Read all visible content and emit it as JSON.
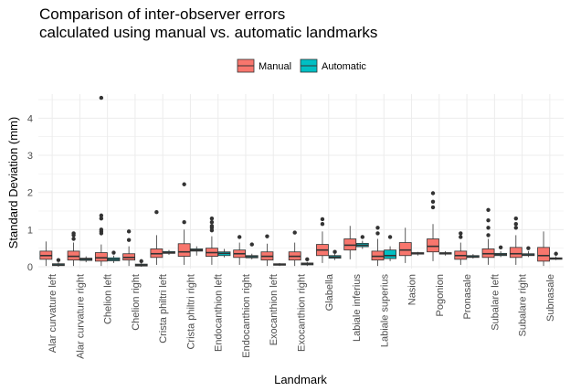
{
  "chart_data": {
    "type": "boxplot",
    "title_lines": [
      "Comparison of inter-observer errors",
      "calculated using manual vs. automatic landmarks"
    ],
    "xlabel": "Landmark",
    "ylabel": "Standard Deviation (mm)",
    "ylim": [
      -0.05,
      4.65
    ],
    "yticks": [
      0,
      1,
      2,
      3,
      4
    ],
    "ytick_labels": [
      "0",
      "1",
      "2",
      "3",
      "4"
    ],
    "grid": true,
    "legend_position": "top",
    "legend": [
      {
        "name": "Manual",
        "color": "#F8766D"
      },
      {
        "name": "Automatic",
        "color": "#00BFC4"
      }
    ],
    "categories": [
      "Alar curvature left",
      "Alar curvature right",
      "Chelion left",
      "Chelion right",
      "Crista philtri left",
      "Crista philtri right",
      "Endocanthion left",
      "Endocanthion right",
      "Exocanthion left",
      "Exocanthion right",
      "Glabella",
      "Labiale inferius",
      "Labiale superius",
      "Nasion",
      "Pogonion",
      "Pronasale",
      "Subalare left",
      "Subalare right",
      "Subnasale"
    ],
    "series": [
      {
        "name": "Manual",
        "boxes": [
          {
            "whislo": 0.02,
            "q1": 0.2,
            "med": 0.3,
            "q3": 0.42,
            "whishi": 0.68,
            "outliers": []
          },
          {
            "whislo": 0.02,
            "q1": 0.18,
            "med": 0.28,
            "q3": 0.42,
            "whishi": 0.65,
            "outliers": [
              0.75,
              0.85,
              0.9
            ]
          },
          {
            "whislo": 0.02,
            "q1": 0.15,
            "med": 0.24,
            "q3": 0.38,
            "whishi": 0.6,
            "outliers": [
              0.9,
              0.95,
              1.0,
              1.3,
              1.38,
              4.55
            ]
          },
          {
            "whislo": 0.02,
            "q1": 0.18,
            "med": 0.25,
            "q3": 0.35,
            "whishi": 0.55,
            "outliers": [
              0.72,
              0.95
            ]
          },
          {
            "whislo": 0.05,
            "q1": 0.25,
            "med": 0.35,
            "q3": 0.48,
            "whishi": 0.85,
            "outliers": [
              1.47
            ]
          },
          {
            "whislo": 0.05,
            "q1": 0.28,
            "med": 0.4,
            "q3": 0.62,
            "whishi": 1.0,
            "outliers": [
              1.2,
              2.22
            ]
          },
          {
            "whislo": 0.05,
            "q1": 0.28,
            "med": 0.38,
            "q3": 0.5,
            "whishi": 0.82,
            "outliers": [
              0.98,
              1.05,
              1.1,
              1.2,
              1.3
            ]
          },
          {
            "whislo": 0.05,
            "q1": 0.25,
            "med": 0.35,
            "q3": 0.45,
            "whishi": 0.65,
            "outliers": [
              0.8
            ]
          },
          {
            "whislo": 0.02,
            "q1": 0.18,
            "med": 0.28,
            "q3": 0.4,
            "whishi": 0.62,
            "outliers": [
              0.82
            ]
          },
          {
            "whislo": 0.02,
            "q1": 0.18,
            "med": 0.28,
            "q3": 0.4,
            "whishi": 0.65,
            "outliers": [
              0.92
            ]
          },
          {
            "whislo": 0.1,
            "q1": 0.3,
            "med": 0.45,
            "q3": 0.6,
            "whishi": 0.95,
            "outliers": [
              1.15,
              1.28
            ]
          },
          {
            "whislo": 0.2,
            "q1": 0.45,
            "med": 0.58,
            "q3": 0.75,
            "whishi": 1.1,
            "outliers": []
          },
          {
            "whislo": 0.02,
            "q1": 0.18,
            "med": 0.28,
            "q3": 0.42,
            "whishi": 0.75,
            "outliers": [
              0.9,
              1.05
            ]
          },
          {
            "whislo": 0.1,
            "q1": 0.3,
            "med": 0.45,
            "q3": 0.65,
            "whishi": 1.05,
            "outliers": []
          },
          {
            "whislo": 0.15,
            "q1": 0.4,
            "med": 0.55,
            "q3": 0.75,
            "whishi": 1.15,
            "outliers": [
              1.6,
              1.75,
              1.98
            ]
          },
          {
            "whislo": 0.05,
            "q1": 0.2,
            "med": 0.3,
            "q3": 0.42,
            "whishi": 0.65,
            "outliers": [
              0.8,
              0.9
            ]
          },
          {
            "whislo": 0.05,
            "q1": 0.25,
            "med": 0.35,
            "q3": 0.48,
            "whishi": 0.75,
            "outliers": [
              0.85,
              1.05,
              1.25,
              1.53
            ]
          },
          {
            "whislo": 0.05,
            "q1": 0.25,
            "med": 0.35,
            "q3": 0.52,
            "whishi": 0.85,
            "outliers": [
              1.05,
              1.15,
              1.3
            ]
          },
          {
            "whislo": 0.02,
            "q1": 0.15,
            "med": 0.3,
            "q3": 0.52,
            "whishi": 0.95,
            "outliers": []
          }
        ]
      },
      {
        "name": "Automatic",
        "boxes": [
          {
            "whislo": 0.0,
            "q1": 0.03,
            "med": 0.05,
            "q3": 0.08,
            "whishi": 0.12,
            "outliers": [
              0.18
            ]
          },
          {
            "whislo": 0.12,
            "q1": 0.17,
            "med": 0.2,
            "q3": 0.23,
            "whishi": 0.28,
            "outliers": []
          },
          {
            "whislo": 0.1,
            "q1": 0.16,
            "med": 0.2,
            "q3": 0.24,
            "whishi": 0.3,
            "outliers": [
              0.38
            ]
          },
          {
            "whislo": 0.0,
            "q1": 0.02,
            "med": 0.04,
            "q3": 0.07,
            "whishi": 0.1,
            "outliers": [
              0.15
            ]
          },
          {
            "whislo": 0.32,
            "q1": 0.36,
            "med": 0.38,
            "q3": 0.41,
            "whishi": 0.45,
            "outliers": []
          },
          {
            "whislo": 0.3,
            "q1": 0.42,
            "med": 0.45,
            "q3": 0.48,
            "whishi": 0.55,
            "outliers": []
          },
          {
            "whislo": 0.25,
            "q1": 0.3,
            "med": 0.36,
            "q3": 0.4,
            "whishi": 0.48,
            "outliers": []
          },
          {
            "whislo": 0.2,
            "q1": 0.24,
            "med": 0.27,
            "q3": 0.3,
            "whishi": 0.35,
            "outliers": [
              0.6
            ]
          },
          {
            "whislo": 0.02,
            "q1": 0.04,
            "med": 0.06,
            "q3": 0.08,
            "whishi": 0.1,
            "outliers": []
          },
          {
            "whislo": 0.02,
            "q1": 0.05,
            "med": 0.08,
            "q3": 0.1,
            "whishi": 0.13,
            "outliers": [
              0.2
            ]
          },
          {
            "whislo": 0.18,
            "q1": 0.23,
            "med": 0.26,
            "q3": 0.3,
            "whishi": 0.35,
            "outliers": [
              0.4
            ]
          },
          {
            "whislo": 0.48,
            "q1": 0.54,
            "med": 0.58,
            "q3": 0.63,
            "whishi": 0.7,
            "outliers": [
              0.8
            ]
          },
          {
            "whislo": 0.15,
            "q1": 0.22,
            "med": 0.3,
            "q3": 0.45,
            "whishi": 0.55,
            "outliers": [
              0.8
            ]
          },
          {
            "whislo": 0.3,
            "q1": 0.34,
            "med": 0.36,
            "q3": 0.38,
            "whishi": 0.4,
            "outliers": []
          },
          {
            "whislo": 0.3,
            "q1": 0.34,
            "med": 0.36,
            "q3": 0.38,
            "whishi": 0.42,
            "outliers": []
          },
          {
            "whislo": 0.22,
            "q1": 0.25,
            "med": 0.27,
            "q3": 0.3,
            "whishi": 0.34,
            "outliers": []
          },
          {
            "whislo": 0.26,
            "q1": 0.3,
            "med": 0.33,
            "q3": 0.36,
            "whishi": 0.42,
            "outliers": [
              0.52
            ]
          },
          {
            "whislo": 0.26,
            "q1": 0.3,
            "med": 0.32,
            "q3": 0.35,
            "whishi": 0.42,
            "outliers": [
              0.5
            ]
          },
          {
            "whislo": 0.18,
            "q1": 0.2,
            "med": 0.22,
            "q3": 0.24,
            "whishi": 0.28,
            "outliers": [
              0.35
            ]
          }
        ]
      }
    ]
  }
}
